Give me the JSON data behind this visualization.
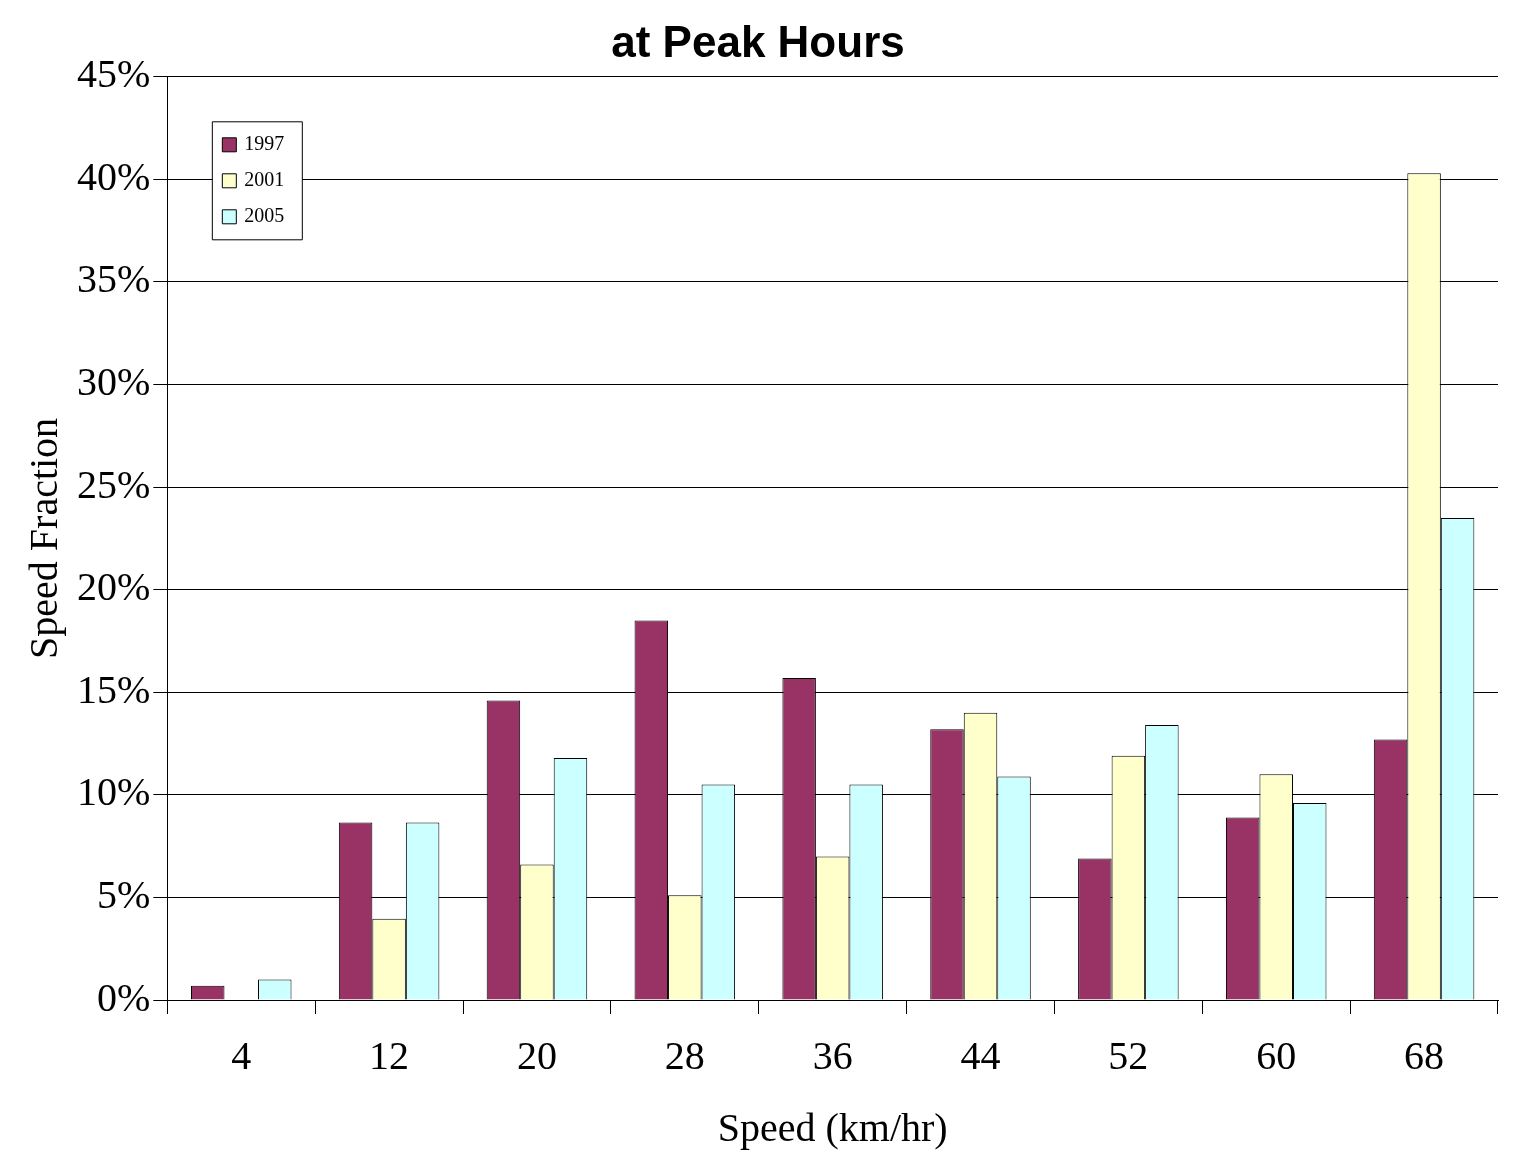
{
  "chart_data": {
    "type": "bar",
    "title": "at Peak Hours",
    "xlabel": "Speed (km/hr)",
    "ylabel": "Speed Fraction",
    "categories": [
      "4",
      "12",
      "20",
      "28",
      "36",
      "44",
      "52",
      "60",
      "68"
    ],
    "series": [
      {
        "name": "1997",
        "color": "#993366",
        "values": [
          0.7,
          8.65,
          14.6,
          18.5,
          15.7,
          13.2,
          6.9,
          8.9,
          12.7
        ]
      },
      {
        "name": "2001",
        "color": "#ffffcc",
        "values": [
          0,
          3.96,
          6.6,
          5.1,
          7.0,
          14.0,
          11.9,
          11.0,
          40.3
        ]
      },
      {
        "name": "2005",
        "color": "#ccffff",
        "values": [
          1.0,
          8.65,
          11.8,
          10.5,
          10.5,
          10.9,
          13.4,
          9.6,
          23.5
        ]
      }
    ],
    "ylim": [
      0,
      45
    ],
    "yticks": [
      {
        "value": 0,
        "label": "0%"
      },
      {
        "value": 5,
        "label": "5%"
      },
      {
        "value": 10,
        "label": "10%"
      },
      {
        "value": 15,
        "label": "15%"
      },
      {
        "value": 20,
        "label": "20%"
      },
      {
        "value": 25,
        "label": "25%"
      },
      {
        "value": 30,
        "label": "30%"
      },
      {
        "value": 35,
        "label": "35%"
      },
      {
        "value": 40,
        "label": "40%"
      },
      {
        "value": 45,
        "label": "45%"
      }
    ],
    "grid": "y",
    "legend": "top left"
  }
}
